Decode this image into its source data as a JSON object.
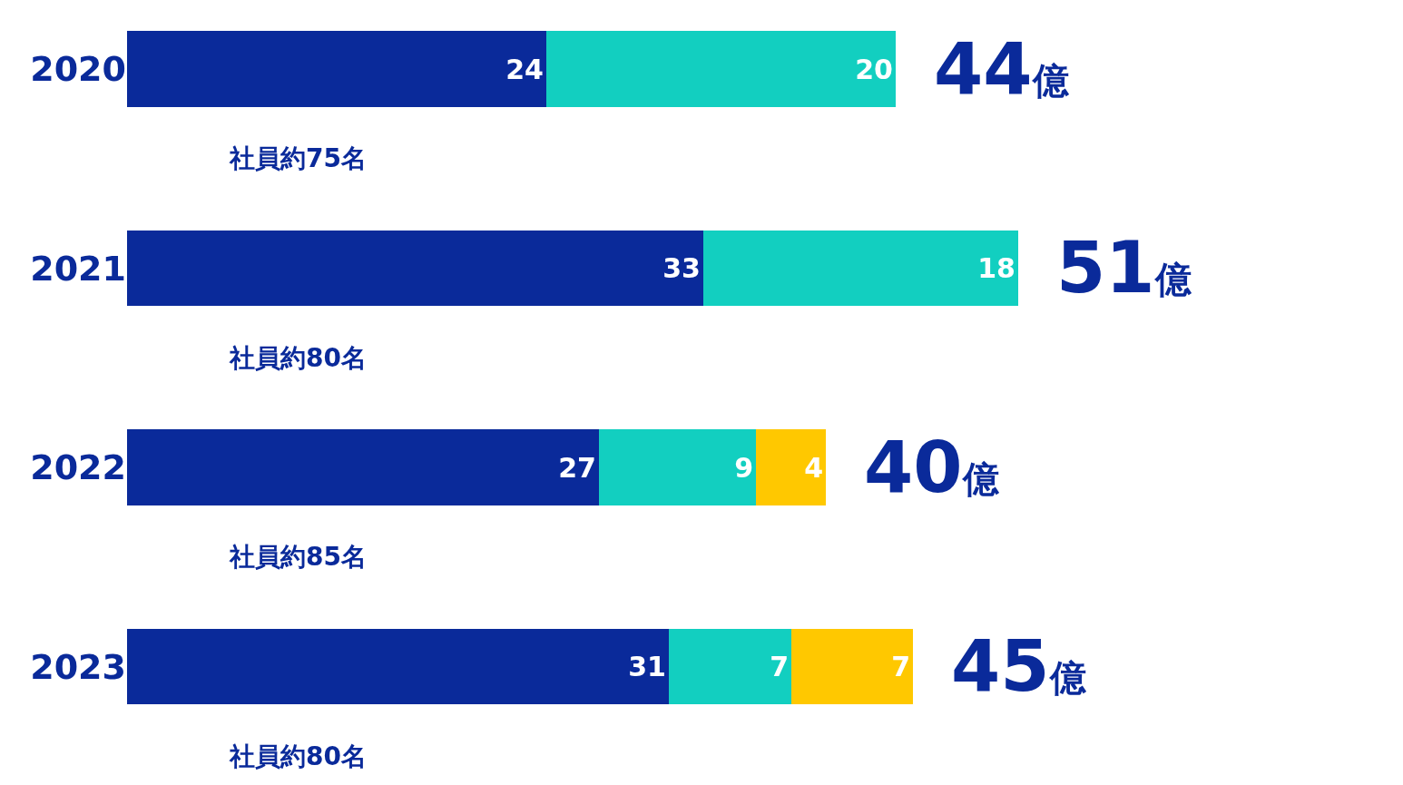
{
  "chart_data": {
    "type": "bar",
    "orientation": "horizontal",
    "stacked": true,
    "data_labels": true,
    "tick_labels": "y",
    "categories": [
      "2020",
      "2021",
      "2022",
      "2023"
    ],
    "series": [
      {
        "color": "#0a2a9a",
        "values": [
          24,
          33,
          27,
          31
        ]
      },
      {
        "color": "#12cfc0",
        "values": [
          20,
          18,
          9,
          7
        ]
      },
      {
        "color": "#ffc800",
        "values": [
          null,
          null,
          4,
          7
        ]
      }
    ],
    "totals": [
      "44億",
      "51億",
      "40億",
      "45億"
    ],
    "annotations": [
      "社員約75名",
      "社員約80名",
      "社員約85名",
      "社員約80名"
    ]
  }
}
